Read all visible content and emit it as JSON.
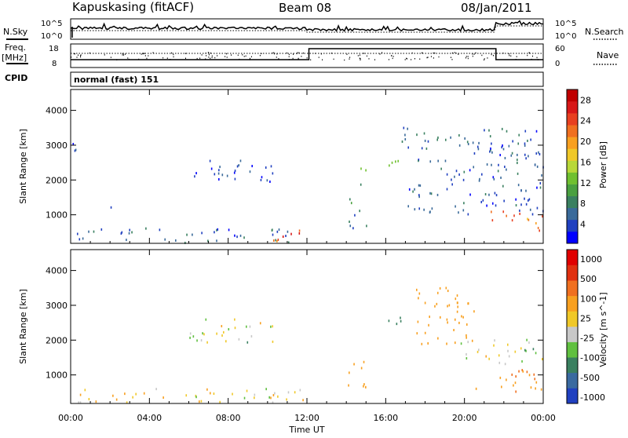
{
  "header": {
    "station": "Kapuskasing (fitACF)",
    "beam": "Beam 08",
    "date": "08/Jan/2011"
  },
  "nsky_panel": {
    "left_label": "N.Sky",
    "right_label": "N.Search",
    "left_ticks": [
      "10^5",
      "10^0"
    ],
    "right_ticks": [
      "10^5",
      "10^0"
    ]
  },
  "freq_panel": {
    "left_label_top": "Freq.",
    "left_label_bottom": "[MHz]",
    "right_label": "Nave",
    "left_ticks": [
      "18",
      "8"
    ],
    "right_ticks": [
      "60",
      "0"
    ]
  },
  "cpid_panel": {
    "label": "CPID",
    "text": "normal (fast) 151"
  },
  "chart_data": [
    {
      "type": "heatmap",
      "name": "power",
      "ylabel": "Slant Range [km]",
      "xlabel": "",
      "ylim": [
        180,
        4600
      ],
      "yticks": [
        "1000",
        "2000",
        "3000",
        "4000"
      ],
      "xticks": [
        "00:00",
        "04:00",
        "08:00",
        "12:00",
        "16:00",
        "20:00",
        "00:00"
      ],
      "colorbar_label": "Power [dB]",
      "colorbar_ticks": [
        "4",
        "8",
        "12",
        "16",
        "20",
        "24",
        "28"
      ],
      "colorbar_colors": [
        "#0000ff",
        "#2040c0",
        "#3a6a9a",
        "#3a8060",
        "#4aa040",
        "#70c030",
        "#b8d838",
        "#f0c828",
        "#f8a020",
        "#f07020",
        "#e84020",
        "#d81818",
        "#c00000"
      ],
      "echo_regions": [
        {
          "x": [
            0.1,
            0.5
          ],
          "y": [
            2100,
            3100
          ],
          "level": 1
        },
        {
          "x": [
            6.0,
            10.5
          ],
          "y": [
            1900,
            2600
          ],
          "level": 1
        },
        {
          "x": [
            2.0,
            2.3
          ],
          "y": [
            900,
            1200
          ],
          "level": 2
        },
        {
          "x": [
            0.3,
            11.5
          ],
          "y": [
            180,
            600
          ],
          "level": 2
        },
        {
          "x": [
            10.2,
            12.5
          ],
          "y": [
            200,
            550
          ],
          "level": 10
        },
        {
          "x": [
            14.0,
            15.0
          ],
          "y": [
            600,
            1500
          ],
          "level": 3
        },
        {
          "x": [
            14.5,
            15.0
          ],
          "y": [
            1800,
            2400
          ],
          "level": 4
        },
        {
          "x": [
            15.8,
            16.8
          ],
          "y": [
            2200,
            2700
          ],
          "level": 5
        },
        {
          "x": [
            16.8,
            24.0
          ],
          "y": [
            1000,
            3500
          ],
          "level": 2
        },
        {
          "x": [
            21.3,
            24.0
          ],
          "y": [
            500,
            1100
          ],
          "level": 9
        }
      ]
    },
    {
      "type": "heatmap",
      "name": "velocity",
      "ylabel": "Slant Range [km]",
      "xlabel": "Time UT",
      "ylim": [
        180,
        4600
      ],
      "yticks": [
        "1000",
        "2000",
        "3000",
        "4000"
      ],
      "xticks": [
        "00:00",
        "04:00",
        "08:00",
        "12:00",
        "16:00",
        "20:00",
        "00:00"
      ],
      "colorbar_label": "Velocity [m s^-1]",
      "colorbar_ticks": [
        "1000",
        "500",
        "100",
        "25",
        "-25",
        "-100",
        "-500",
        "-1000"
      ],
      "colorbar_colors": [
        "#2040c0",
        "#3a6aa0",
        "#3a8060",
        "#60c040",
        "#c8c8c8",
        "#f0c828",
        "#f8a020",
        "#f07020",
        "#e03010",
        "#e00000"
      ],
      "echo_regions": [
        {
          "x": [
            6.0,
            10.5
          ],
          "y": [
            1900,
            2600
          ],
          "v": 0
        },
        {
          "x": [
            0.3,
            12.0
          ],
          "y": [
            180,
            600
          ],
          "v": -60
        },
        {
          "x": [
            14.0,
            15.0
          ],
          "y": [
            600,
            1500
          ],
          "v": -400
        },
        {
          "x": [
            15.8,
            16.8
          ],
          "y": [
            2200,
            2700
          ],
          "v": 150
        },
        {
          "x": [
            17.5,
            20.5
          ],
          "y": [
            1800,
            3500
          ],
          "v": -300
        },
        {
          "x": [
            19.5,
            24.0
          ],
          "y": [
            1300,
            2000
          ],
          "v": 0
        },
        {
          "x": [
            20.5,
            24.0
          ],
          "y": [
            500,
            1200
          ],
          "v": -450
        }
      ]
    }
  ],
  "colors": {
    "ink": "#000000",
    "background": "#ffffff"
  }
}
